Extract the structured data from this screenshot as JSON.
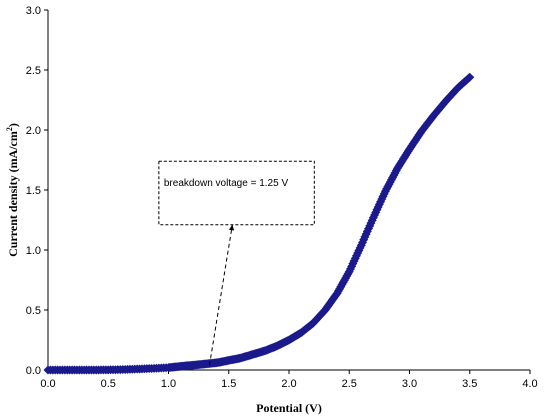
{
  "chart_data": {
    "type": "scatter",
    "title": "",
    "xlabel": "Potential (V)",
    "ylabel_main": "Current density (mA/cm",
    "ylabel_sup": "2",
    "ylabel_close": ")",
    "xlim": [
      0,
      4
    ],
    "ylim": [
      0,
      3
    ],
    "xticks": [
      "0.0",
      "0.5",
      "1.0",
      "1.5",
      "2.0",
      "2.5",
      "3.0",
      "3.5",
      "4.0"
    ],
    "yticks": [
      "0.0",
      "0.5",
      "1.0",
      "1.5",
      "2.0",
      "2.5",
      "3.0"
    ],
    "grid": false,
    "legend": "none",
    "marker": "diamond",
    "series_color": "#1a1a8c",
    "series": [
      {
        "x": [
          0.0,
          0.2,
          0.4,
          0.6,
          0.8,
          1.0,
          1.1,
          1.2,
          1.3,
          1.4,
          1.5,
          1.6,
          1.7,
          1.8,
          1.9,
          2.0,
          2.1,
          2.2,
          2.3,
          2.4,
          2.5,
          2.6,
          2.7,
          2.8,
          2.9,
          3.0,
          3.1,
          3.2,
          3.3,
          3.4,
          3.5
        ],
        "y": [
          0.0,
          0.0,
          0.0,
          0.003,
          0.01,
          0.02,
          0.03,
          0.04,
          0.05,
          0.06,
          0.08,
          0.1,
          0.13,
          0.16,
          0.2,
          0.25,
          0.31,
          0.39,
          0.5,
          0.64,
          0.82,
          1.04,
          1.27,
          1.49,
          1.68,
          1.84,
          1.99,
          2.12,
          2.24,
          2.35,
          2.44
        ]
      }
    ],
    "annotation": {
      "text": "breakdown voltage = 1.25 V",
      "box": [
        0.92,
        1.74,
        2.21,
        1.21
      ],
      "arrow_from": [
        1.34,
        0.04
      ],
      "arrow_to": [
        1.53,
        1.21
      ]
    }
  }
}
